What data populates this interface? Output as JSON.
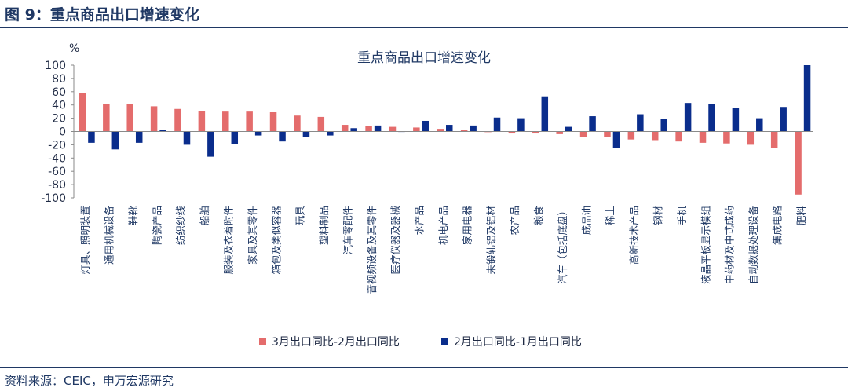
{
  "figure": {
    "title": "图 9：重点商品出口增速变化",
    "source": "资料来源：CEIC，申万宏源研究"
  },
  "colors": {
    "series1": "#e46c6c",
    "series2": "#0a2d8c",
    "text": "#1f3864"
  },
  "chart_data": {
    "type": "bar",
    "title": "重点商品出口增速变化",
    "ylabel": "%",
    "xlabel": "",
    "ylim": [
      -100,
      100
    ],
    "yticks": [
      100,
      80,
      60,
      40,
      20,
      0,
      -20,
      -40,
      -60,
      -80,
      -100
    ],
    "grid": false,
    "legend_position": "bottom",
    "categories": [
      "灯具、照明装置",
      "通用机械设备",
      "鞋靴",
      "陶瓷产品",
      "纺织纱线",
      "船舶",
      "服装及衣着附件",
      "家具及其零件",
      "箱包及类似容器",
      "玩具",
      "塑料制品",
      "汽车零配件",
      "音视频设备及其零件",
      "医疗仪器及器械",
      "水产品",
      "机电产品",
      "家用电器",
      "未锻轧铝及铝材",
      "农产品",
      "粮食",
      "汽车（包括底盘）",
      "成品油",
      "稀土",
      "高新技术产品",
      "钢材",
      "手机",
      "液晶平板显示模组",
      "中药材及中式成药",
      "自动数据处理设备",
      "集成电路",
      "肥料"
    ],
    "series": [
      {
        "name": "3月出口同比-2月出口同比",
        "values": [
          58,
          42,
          41,
          38,
          34,
          31,
          30,
          30,
          29,
          24,
          22,
          10,
          8,
          7,
          6,
          4,
          2,
          -1,
          -3,
          -3,
          -4,
          -8,
          -8,
          -12,
          -13,
          -15,
          -17,
          -18,
          -20,
          -25,
          -95
        ]
      },
      {
        "name": "2月出口同比-1月出口同比",
        "values": [
          -17,
          -27,
          -17,
          2,
          -20,
          -38,
          -19,
          -6,
          -15,
          -8,
          -6,
          5,
          9,
          0,
          16,
          10,
          9,
          21,
          20,
          53,
          7,
          23,
          -25,
          26,
          19,
          43,
          41,
          36,
          20,
          37,
          100
        ]
      }
    ]
  }
}
